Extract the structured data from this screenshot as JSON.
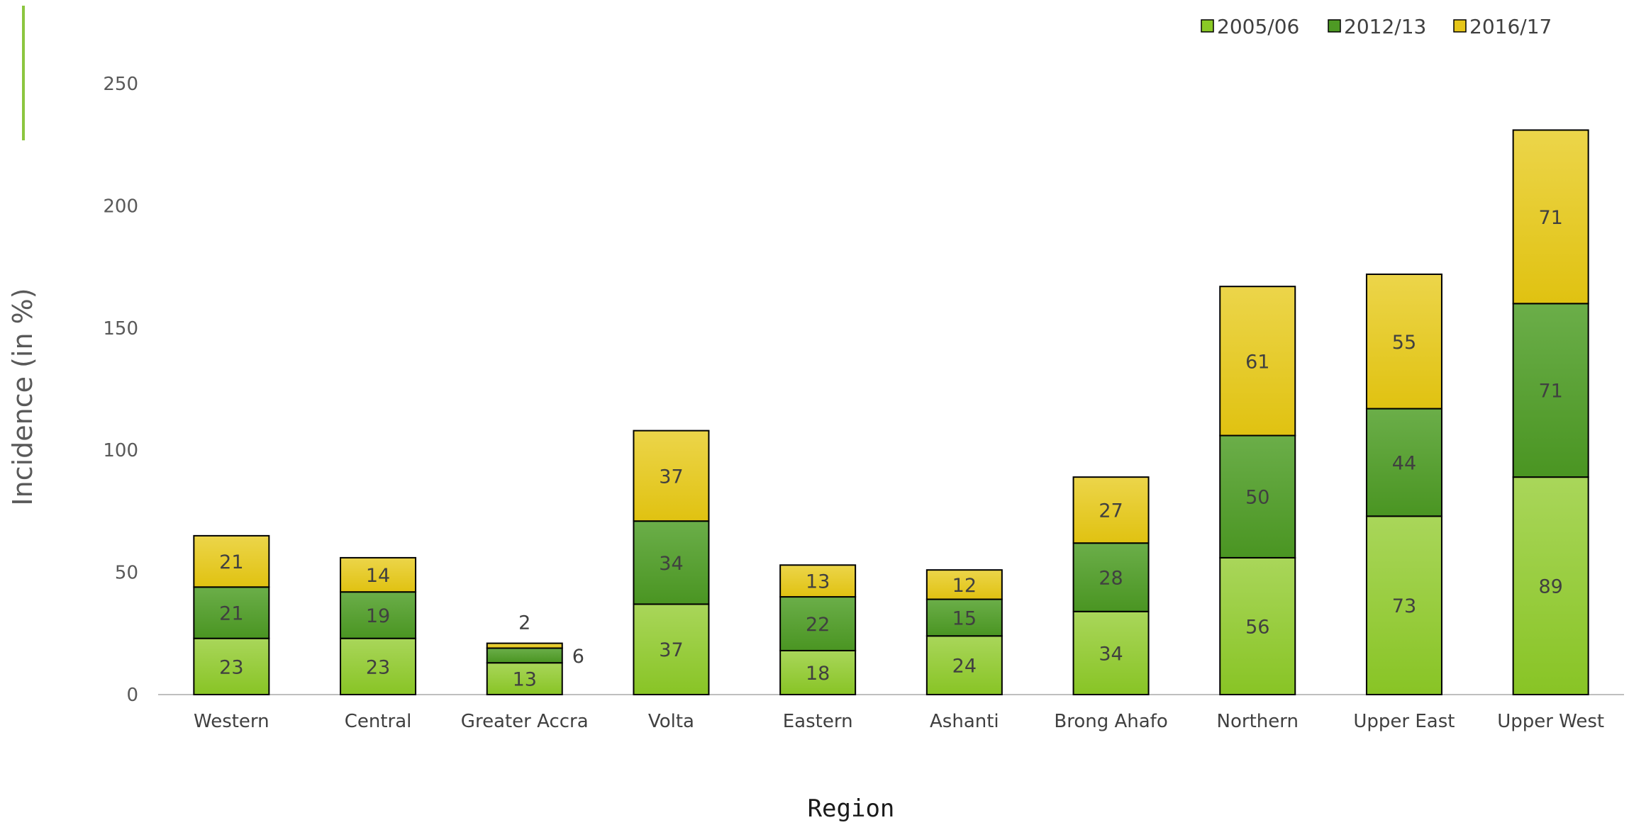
{
  "chart_data": {
    "type": "bar",
    "stacked": true,
    "title": "",
    "xlabel": "Region",
    "ylabel": "Incidence (in %)",
    "ylim": [
      0,
      250
    ],
    "yticks": [
      0,
      50,
      100,
      150,
      200,
      250
    ],
    "grid": false,
    "legend": "top-right",
    "categories": [
      "Western",
      "Central",
      "Greater Accra",
      "Volta",
      "Eastern",
      "Ashanti",
      "Brong Ahafo",
      "Northern",
      "Upper East",
      "Upper West"
    ],
    "series": [
      {
        "name": "2005/06",
        "color": "#8ac926",
        "values": [
          23,
          23,
          13,
          37,
          18,
          24,
          34,
          56,
          73,
          89
        ]
      },
      {
        "name": "2012/13",
        "color": "#4e9a24",
        "values": [
          21,
          19,
          6,
          34,
          22,
          15,
          28,
          50,
          44,
          71
        ]
      },
      {
        "name": "2016/17",
        "color": "#e6c619",
        "values": [
          21,
          14,
          2,
          37,
          13,
          12,
          27,
          61,
          55,
          71
        ]
      }
    ]
  }
}
